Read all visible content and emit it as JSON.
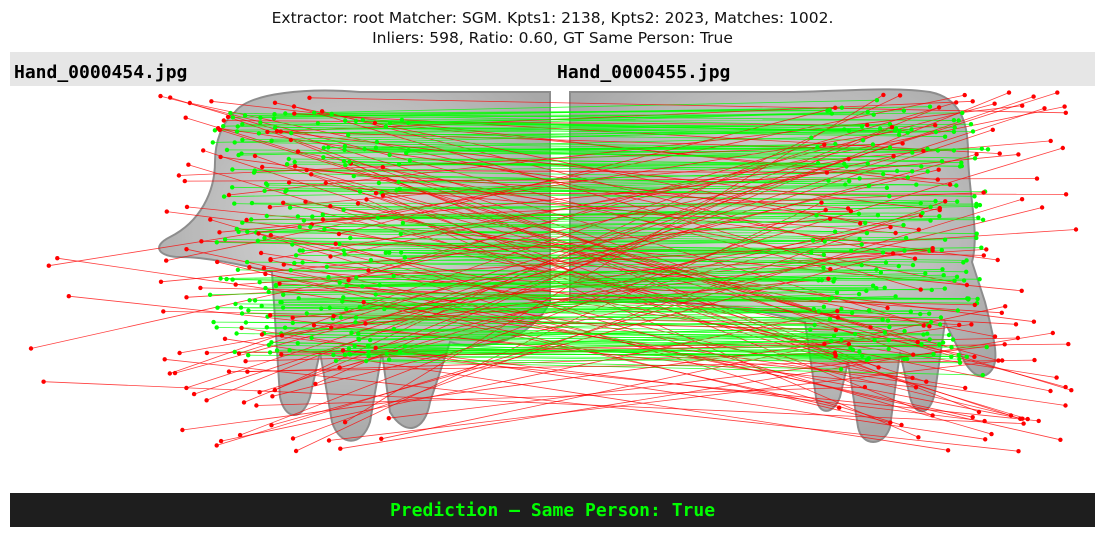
{
  "title": {
    "line1": "Extractor:  root Matcher: SGM. Kpts1: 2138, Kpts2: 2023, Matches: 1002.",
    "line2": "Inliers: 598, Ratio: 0.60, GT Same Person: True"
  },
  "images": {
    "left_label": "Hand_0000454.jpg",
    "right_label": "Hand_0000455.jpg"
  },
  "prediction": {
    "text": "Prediction — Same Person: True"
  },
  "colors": {
    "inlier": "#00ff00",
    "outlier": "#ff0000",
    "prediction_text": "#00ff00",
    "bar_bg": "#1e1e1e",
    "header_band": "#e6e6e6"
  },
  "match_stats": {
    "matches": 1002,
    "inliers": 598
  }
}
